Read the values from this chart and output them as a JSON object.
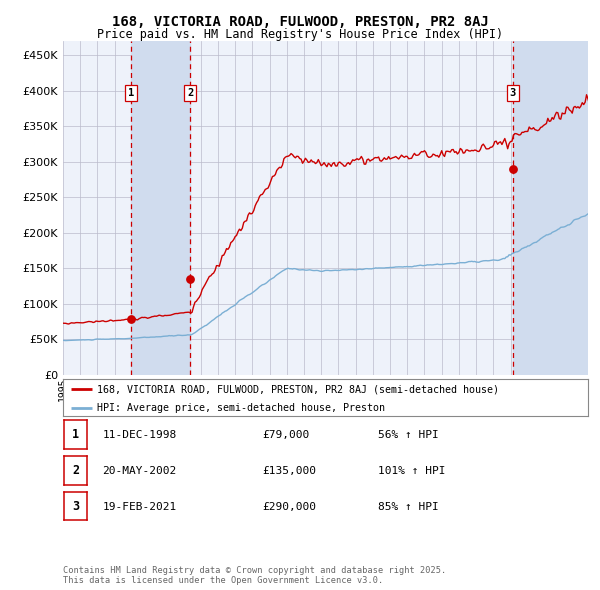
{
  "title": "168, VICTORIA ROAD, FULWOOD, PRESTON, PR2 8AJ",
  "subtitle": "Price paid vs. HM Land Registry's House Price Index (HPI)",
  "legend_red": "168, VICTORIA ROAD, FULWOOD, PRESTON, PR2 8AJ (semi-detached house)",
  "legend_blue": "HPI: Average price, semi-detached house, Preston",
  "sale1_date": "11-DEC-1998",
  "sale1_price": 79000,
  "sale1_hpi": "56% ↑ HPI",
  "sale2_date": "20-MAY-2002",
  "sale2_price": 135000,
  "sale2_hpi": "101% ↑ HPI",
  "sale3_date": "19-FEB-2021",
  "sale3_price": 290000,
  "sale3_hpi": "85% ↑ HPI",
  "footer": "Contains HM Land Registry data © Crown copyright and database right 2025.\nThis data is licensed under the Open Government Licence v3.0.",
  "red_color": "#cc0000",
  "blue_color": "#7bafd4",
  "bg_color": "#ffffff",
  "plot_bg": "#eef2fa",
  "grid_color": "#bbbbcc",
  "shade_color": "#d0dcee",
  "vline_color": "#cc0000",
  "ylim_max": 470000,
  "sale1_x": 1998.94,
  "sale2_x": 2002.38,
  "sale3_x": 2021.13,
  "xmin": 1995.0,
  "xmax": 2025.5
}
